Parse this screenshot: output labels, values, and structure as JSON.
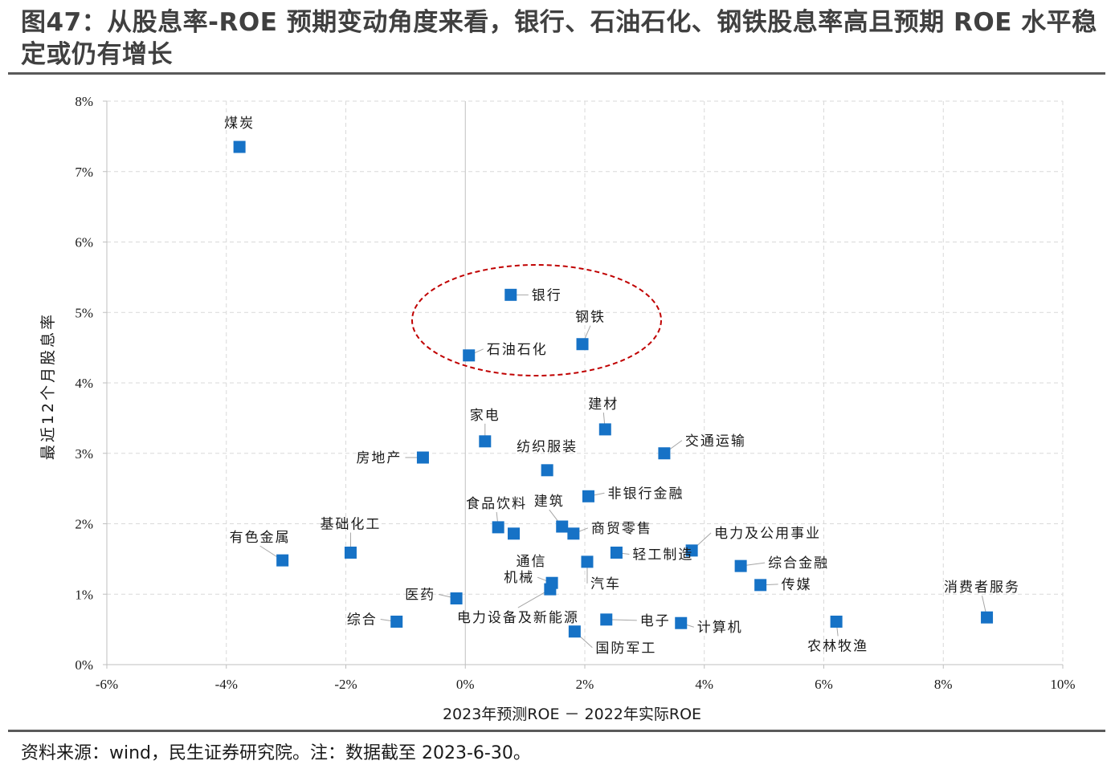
{
  "header": {
    "title": "图47：从股息率-ROE 预期变动角度来看，银行、石油石化、钢铁股息率高且预期 ROE 水平稳定或仍有增长",
    "source": "资料来源：wind，民生证券研究院。注：数据截至 2023-6-30。"
  },
  "colors": {
    "marker": "#1672c6",
    "ellipse": "#c00000",
    "grid": "#d9d9d9",
    "axis": "#bfbfbf"
  },
  "chart_data": {
    "type": "scatter",
    "xlabel": "2023年预测ROE － 2022年实际ROE",
    "ylabel": "最近12个月股息率",
    "xlim": [
      -6,
      10
    ],
    "ylim": [
      0,
      8
    ],
    "x_unit": "%",
    "y_unit": "%",
    "x_ticks": [
      "-6%",
      "-4%",
      "-2%",
      "0%",
      "2%",
      "4%",
      "6%",
      "8%",
      "10%"
    ],
    "y_ticks": [
      "0%",
      "1%",
      "2%",
      "3%",
      "4%",
      "5%",
      "6%",
      "7%",
      "8%"
    ],
    "grid": "dashed",
    "highlight": [
      "银行",
      "石油石化",
      "钢铁"
    ],
    "points": [
      {
        "label": "煤炭",
        "x": -3.78,
        "y": 7.35
      },
      {
        "label": "银行",
        "x": 0.76,
        "y": 5.25
      },
      {
        "label": "石油石化",
        "x": 0.06,
        "y": 4.39
      },
      {
        "label": "钢铁",
        "x": 1.96,
        "y": 4.55
      },
      {
        "label": "家电",
        "x": 0.33,
        "y": 3.17
      },
      {
        "label": "建材",
        "x": 2.34,
        "y": 3.34
      },
      {
        "label": "交通运输",
        "x": 3.33,
        "y": 3.0
      },
      {
        "label": "房地产",
        "x": -0.71,
        "y": 2.94
      },
      {
        "label": "纺织服装",
        "x": 1.37,
        "y": 2.76
      },
      {
        "label": "非银行金融",
        "x": 2.06,
        "y": 2.39
      },
      {
        "label": "建筑",
        "x": 1.62,
        "y": 1.96
      },
      {
        "label": "食品饮料",
        "x": 0.55,
        "y": 1.95
      },
      {
        "label": "通信",
        "x": 0.81,
        "y": 1.86
      },
      {
        "label": "商贸零售",
        "x": 1.81,
        "y": 1.86
      },
      {
        "label": "电力及公用事业",
        "x": 3.79,
        "y": 1.62
      },
      {
        "label": "有色金属",
        "x": -3.06,
        "y": 1.48
      },
      {
        "label": "基础化工",
        "x": -1.92,
        "y": 1.59
      },
      {
        "label": "轻工制造",
        "x": 2.53,
        "y": 1.59
      },
      {
        "label": "汽车",
        "x": 2.04,
        "y": 1.46
      },
      {
        "label": "综合金融",
        "x": 4.61,
        "y": 1.4
      },
      {
        "label": "机械",
        "x": 1.45,
        "y": 1.16
      },
      {
        "label": "传媒",
        "x": 4.94,
        "y": 1.13
      },
      {
        "label": "电力设备及新能源",
        "x": 1.42,
        "y": 1.07
      },
      {
        "label": "医药",
        "x": -0.15,
        "y": 0.94
      },
      {
        "label": "消费者服务",
        "x": 8.73,
        "y": 0.67
      },
      {
        "label": "综合",
        "x": -1.15,
        "y": 0.61
      },
      {
        "label": "电子",
        "x": 2.36,
        "y": 0.64
      },
      {
        "label": "计算机",
        "x": 3.61,
        "y": 0.59
      },
      {
        "label": "农林牧渔",
        "x": 6.21,
        "y": 0.61
      },
      {
        "label": "国防军工",
        "x": 1.83,
        "y": 0.47
      }
    ]
  }
}
